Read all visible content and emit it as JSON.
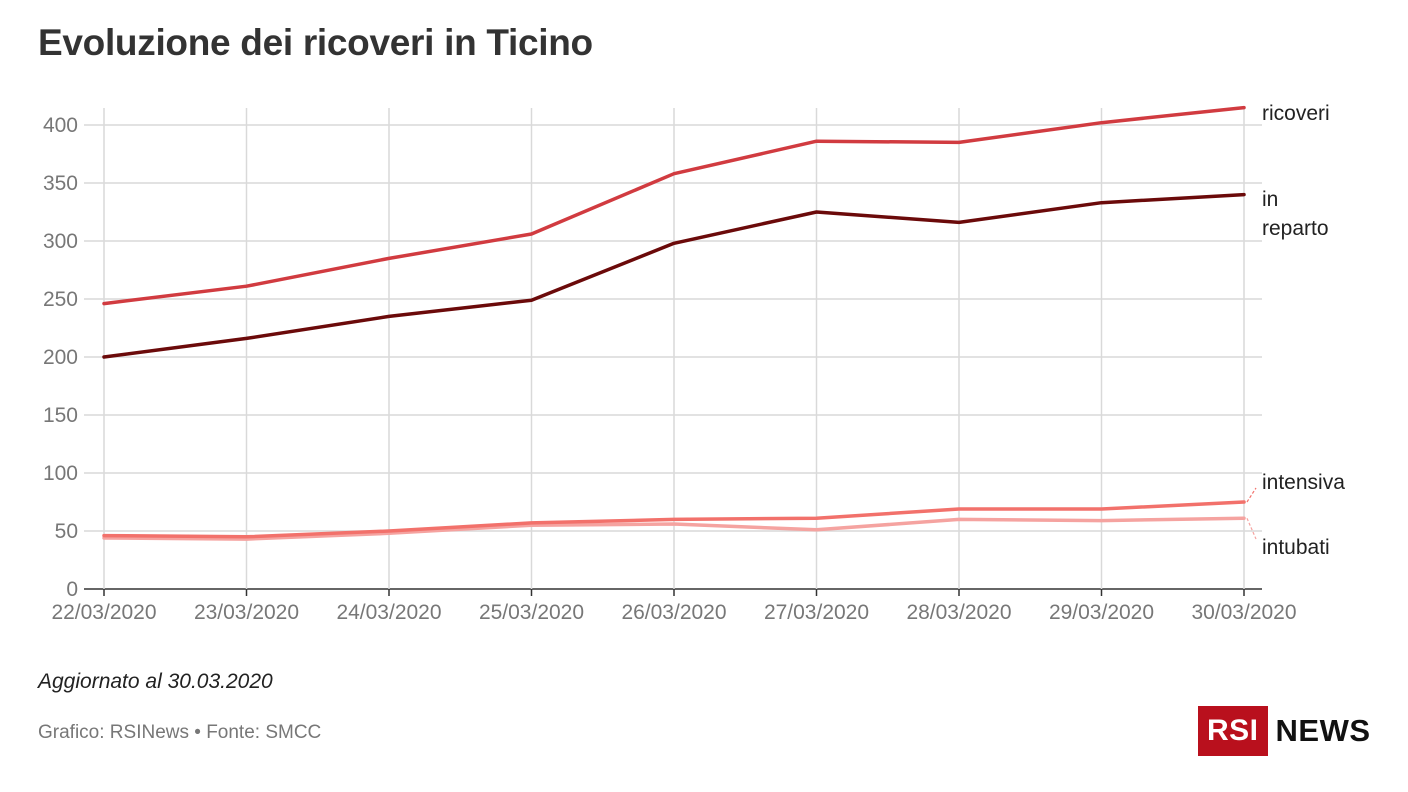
{
  "title": "Evoluzione dei ricoveri in Ticino",
  "note": "Aggiornato al 30.03.2020",
  "source": "Grafico: RSINews • Fonte: SMCC",
  "logo": {
    "brand": "RSI",
    "suffix": "NEWS",
    "brand_color": "#b9101d"
  },
  "chart_data": {
    "type": "line",
    "title": "Evoluzione dei ricoveri in Ticino",
    "xlabel": "",
    "ylabel": "",
    "x": [
      "22/03/2020",
      "23/03/2020",
      "24/03/2020",
      "25/03/2020",
      "26/03/2020",
      "27/03/2020",
      "28/03/2020",
      "29/03/2020",
      "30/03/2020"
    ],
    "ylim": [
      0,
      400
    ],
    "yticks": [
      0,
      50,
      100,
      150,
      200,
      250,
      300,
      350,
      400
    ],
    "grid": true,
    "legend": "direct labels at right end of lines",
    "series": [
      {
        "name": "ricoveri",
        "label_lines": [
          "ricoveri"
        ],
        "color": "#d13b40",
        "values": [
          246,
          261,
          285,
          306,
          358,
          386,
          385,
          402,
          415
        ]
      },
      {
        "name": "in reparto",
        "label_lines": [
          "in",
          "reparto"
        ],
        "color": "#6b0a0a",
        "values": [
          200,
          216,
          235,
          249,
          298,
          325,
          316,
          333,
          340
        ]
      },
      {
        "name": "intensiva",
        "label_lines": [
          "intensiva"
        ],
        "color": "#f2716b",
        "values": [
          46,
          45,
          50,
          57,
          60,
          61,
          69,
          69,
          75
        ]
      },
      {
        "name": "intubati",
        "label_lines": [
          "intubati"
        ],
        "color": "#f5a3a0",
        "values": [
          44,
          43,
          48,
          55,
          56,
          51,
          60,
          59,
          61
        ]
      }
    ]
  }
}
